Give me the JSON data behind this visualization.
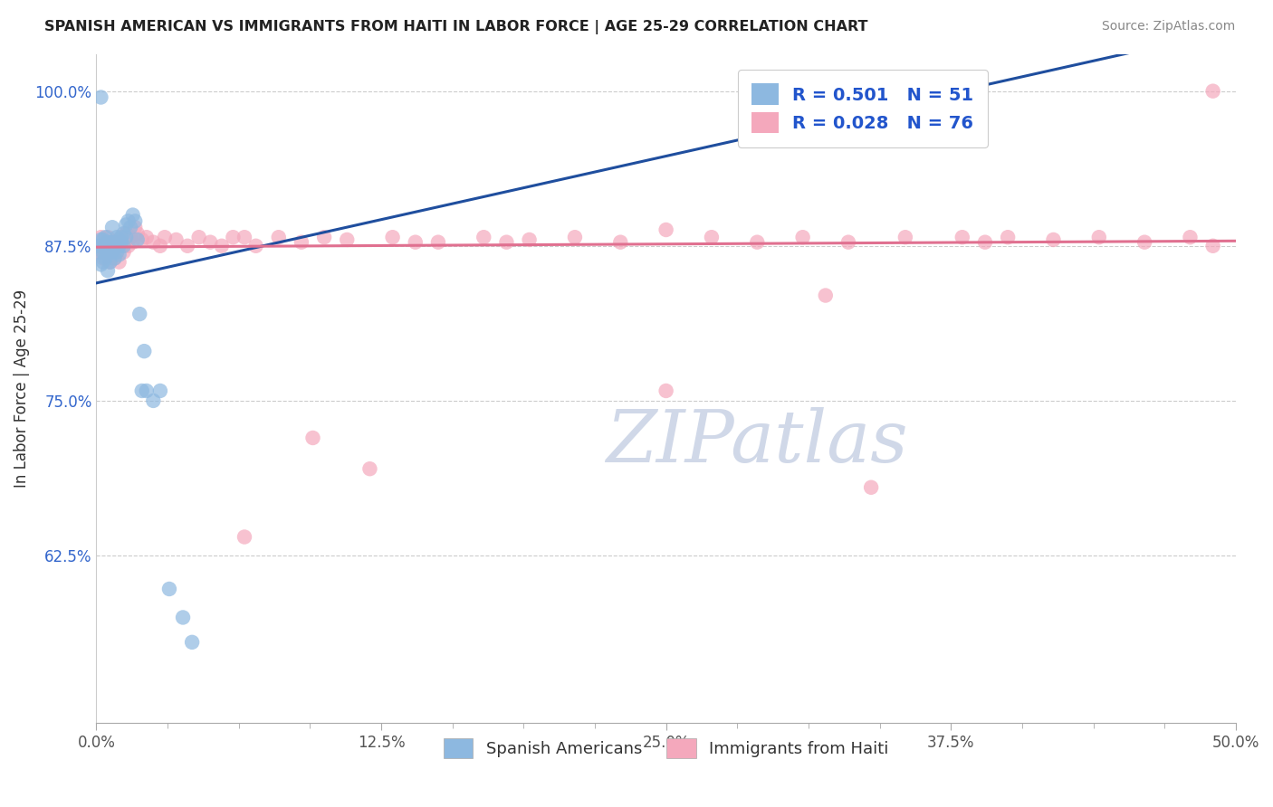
{
  "title": "SPANISH AMERICAN VS IMMIGRANTS FROM HAITI IN LABOR FORCE | AGE 25-29 CORRELATION CHART",
  "source_text": "Source: ZipAtlas.com",
  "ylabel": "In Labor Force | Age 25-29",
  "xlim": [
    0.0,
    0.5
  ],
  "ylim": [
    0.49,
    1.03
  ],
  "xtick_labels": [
    "0.0%",
    "",
    "",
    "",
    "",
    "",
    "",
    "",
    "12.5%",
    "",
    "",
    "",
    "",
    "",
    "",
    "",
    "25.0%",
    "",
    "",
    "",
    "",
    "",
    "",
    "",
    "37.5%",
    "",
    "",
    "",
    "",
    "",
    "",
    "",
    "50.0%"
  ],
  "xtick_vals": [
    0.0,
    0.015625,
    0.03125,
    0.046875,
    0.0625,
    0.078125,
    0.09375,
    0.109375,
    0.125,
    0.140625,
    0.15625,
    0.171875,
    0.1875,
    0.203125,
    0.21875,
    0.234375,
    0.25,
    0.265625,
    0.28125,
    0.296875,
    0.3125,
    0.328125,
    0.34375,
    0.359375,
    0.375,
    0.390625,
    0.40625,
    0.421875,
    0.4375,
    0.453125,
    0.46875,
    0.484375,
    0.5
  ],
  "ytick_labels": [
    "62.5%",
    "75.0%",
    "87.5%",
    "100.0%"
  ],
  "ytick_vals": [
    0.625,
    0.75,
    0.875,
    1.0
  ],
  "blue_color": "#8db8e0",
  "pink_color": "#f4a8bc",
  "blue_line_color": "#1f4e9e",
  "pink_line_color": "#e07090",
  "legend_r_color": "#2255cc",
  "watermark_color": "#d0d8e8",
  "watermark_text": "ZIPatlas",
  "legend_label_blue": "R = 0.501   N = 51",
  "legend_label_pink": "R = 0.028   N = 76",
  "legend_bottom_blue": "Spanish Americans",
  "legend_bottom_pink": "Immigrants from Haiti",
  "blue_x": [
    0.001,
    0.001,
    0.002,
    0.002,
    0.002,
    0.003,
    0.003,
    0.003,
    0.004,
    0.004,
    0.004,
    0.005,
    0.005,
    0.005,
    0.006,
    0.006,
    0.006,
    0.007,
    0.007,
    0.007,
    0.007,
    0.008,
    0.008,
    0.008,
    0.009,
    0.009,
    0.009,
    0.01,
    0.01,
    0.01,
    0.01,
    0.011,
    0.011,
    0.012,
    0.012,
    0.013,
    0.013,
    0.014,
    0.015,
    0.016,
    0.017,
    0.018,
    0.019,
    0.02,
    0.021,
    0.022,
    0.025,
    0.028,
    0.032,
    0.038,
    0.042
  ],
  "blue_y": [
    0.875,
    0.87,
    0.88,
    0.86,
    0.995,
    0.88,
    0.87,
    0.862,
    0.875,
    0.865,
    0.882,
    0.878,
    0.87,
    0.855,
    0.875,
    0.87,
    0.862,
    0.878,
    0.875,
    0.89,
    0.87,
    0.878,
    0.865,
    0.875,
    0.882,
    0.878,
    0.87,
    0.88,
    0.878,
    0.875,
    0.868,
    0.882,
    0.878,
    0.885,
    0.875,
    0.892,
    0.882,
    0.895,
    0.89,
    0.9,
    0.895,
    0.88,
    0.82,
    0.758,
    0.79,
    0.758,
    0.75,
    0.758,
    0.598,
    0.575,
    0.555
  ],
  "pink_x": [
    0.001,
    0.002,
    0.002,
    0.003,
    0.003,
    0.004,
    0.004,
    0.005,
    0.005,
    0.006,
    0.006,
    0.007,
    0.007,
    0.008,
    0.008,
    0.009,
    0.009,
    0.01,
    0.01,
    0.011,
    0.011,
    0.012,
    0.012,
    0.013,
    0.013,
    0.014,
    0.015,
    0.016,
    0.017,
    0.018,
    0.02,
    0.022,
    0.025,
    0.028,
    0.03,
    0.035,
    0.04,
    0.045,
    0.05,
    0.055,
    0.06,
    0.065,
    0.07,
    0.08,
    0.09,
    0.1,
    0.11,
    0.13,
    0.15,
    0.17,
    0.19,
    0.21,
    0.23,
    0.25,
    0.27,
    0.29,
    0.31,
    0.33,
    0.355,
    0.38,
    0.4,
    0.42,
    0.44,
    0.46,
    0.48,
    0.49,
    0.14,
    0.18,
    0.25,
    0.32,
    0.39,
    0.065,
    0.095,
    0.12,
    0.34,
    0.49
  ],
  "pink_y": [
    0.875,
    0.87,
    0.882,
    0.865,
    0.875,
    0.878,
    0.87,
    0.882,
    0.875,
    0.87,
    0.862,
    0.878,
    0.875,
    0.865,
    0.878,
    0.875,
    0.87,
    0.878,
    0.862,
    0.875,
    0.882,
    0.878,
    0.87,
    0.885,
    0.878,
    0.875,
    0.882,
    0.878,
    0.89,
    0.885,
    0.88,
    0.882,
    0.878,
    0.875,
    0.882,
    0.88,
    0.875,
    0.882,
    0.878,
    0.875,
    0.882,
    0.882,
    0.875,
    0.882,
    0.878,
    0.882,
    0.88,
    0.882,
    0.878,
    0.882,
    0.88,
    0.882,
    0.878,
    0.888,
    0.882,
    0.878,
    0.882,
    0.878,
    0.882,
    0.882,
    0.882,
    0.88,
    0.882,
    0.878,
    0.882,
    0.875,
    0.878,
    0.878,
    0.758,
    0.835,
    0.878,
    0.64,
    0.72,
    0.695,
    0.68,
    1.0
  ],
  "blue_trendline": [
    0.0,
    0.5,
    0.845,
    1.05
  ],
  "pink_trendline": [
    0.0,
    0.5,
    0.874,
    0.879
  ]
}
